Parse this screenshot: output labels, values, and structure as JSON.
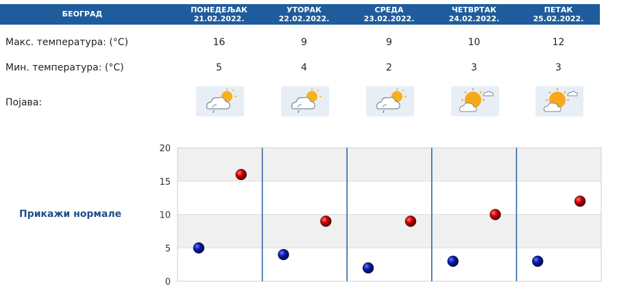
{
  "header": {
    "city": "БЕОГРАД",
    "days": [
      {
        "name": "ПОНЕДЕЉАК",
        "date": "21.02.2022."
      },
      {
        "name": "УТОРАК",
        "date": "22.02.2022."
      },
      {
        "name": "СРЕДА",
        "date": "23.02.2022."
      },
      {
        "name": "ЧЕТВРТАК",
        "date": "24.02.2022."
      },
      {
        "name": "ПЕТАК",
        "date": "25.02.2022."
      }
    ]
  },
  "rows": {
    "max_label": "Макс. температура: (°C)",
    "min_label": "Мин. температура: (°C)",
    "phenomenon_label": "Појава:"
  },
  "forecast": {
    "max": [
      16,
      9,
      9,
      10,
      12
    ],
    "min": [
      5,
      4,
      2,
      3,
      3
    ],
    "icons": [
      "sun-cloud-rain-icon",
      "sun-cloud-rain-icon",
      "sun-cloud-rain-icon",
      "sun-cloud-icon",
      "sun-cloud-icon"
    ]
  },
  "normals_link": "Прикажи нормале",
  "colors": {
    "header_bg": "#1f5c9c",
    "max_marker": "#cc0000",
    "min_marker": "#0a1aa8",
    "link": "#1f4e85"
  },
  "chart_data": {
    "type": "scatter",
    "categories": [
      "ПОНЕДЕЉАК",
      "УТОРАК",
      "СРЕДА",
      "ЧЕТВРТАК",
      "ПЕТАК"
    ],
    "series": [
      {
        "values": [
          5,
          4,
          2,
          3,
          3
        ]
      },
      {
        "values": [
          16,
          9,
          9,
          10,
          12
        ]
      }
    ],
    "ylim": [
      0,
      20
    ],
    "yticks": [
      0,
      5,
      10,
      15,
      20
    ],
    "grid": true,
    "xlabel": "",
    "ylabel": "",
    "title": ""
  }
}
